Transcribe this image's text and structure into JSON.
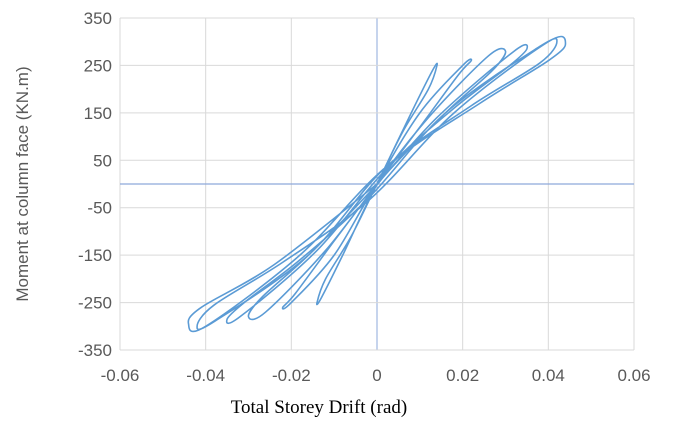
{
  "chart_data": {
    "type": "line",
    "title": "",
    "xlabel": "Total Storey Drift (rad)",
    "ylabel": "Moment at column face (KN.m)",
    "xlim": [
      -0.06,
      0.06
    ],
    "ylim": [
      -350,
      350
    ],
    "x_ticks": [
      "-0.06",
      "-0.04",
      "-0.02",
      "0",
      "0.02",
      "0.04",
      "0.06"
    ],
    "y_ticks": [
      "350",
      "250",
      "150",
      "50",
      "-50",
      "-150",
      "-250",
      "-350"
    ],
    "grid": true,
    "legend": "none",
    "colors": {
      "series": "#5b9bd5",
      "grid": "#d9d9d9",
      "zero_line": "#8ea9db"
    },
    "series": [
      {
        "x": [
          0,
          0.008,
          0.013,
          0.014,
          0.012,
          0.006,
          0,
          -0.006,
          -0.012,
          -0.014,
          -0.013,
          -0.008,
          0,
          0.01,
          0.02,
          0.022,
          0.019,
          0.01,
          0,
          -0.01,
          -0.019,
          -0.022,
          -0.02,
          -0.01,
          0,
          0.012,
          0.026,
          0.03,
          0.027,
          0.016,
          0.002,
          -0.012,
          -0.026,
          -0.03,
          -0.027,
          -0.016,
          -0.002,
          0.014,
          0.032,
          0.035,
          0.031,
          0.018,
          0.002,
          -0.014,
          -0.032,
          -0.035,
          -0.031,
          -0.018,
          -0.002,
          0.016,
          0.038,
          0.042,
          0.038,
          0.022,
          0.002,
          -0.016,
          -0.038,
          -0.042,
          -0.038,
          -0.022,
          -0.002,
          0.018,
          0.04,
          0.044,
          0.04,
          0.024,
          0.002,
          -0.018,
          -0.04,
          -0.044,
          -0.041,
          -0.024,
          0
        ],
        "y": [
          0,
          150,
          240,
          250,
          200,
          110,
          0,
          -110,
          -200,
          -250,
          -240,
          -150,
          0,
          150,
          250,
          260,
          230,
          120,
          0,
          -120,
          -230,
          -260,
          -250,
          -150,
          0,
          140,
          270,
          280,
          240,
          150,
          20,
          -140,
          -270,
          -280,
          -240,
          -150,
          -20,
          140,
          280,
          285,
          250,
          160,
          30,
          -140,
          -280,
          -285,
          -250,
          -160,
          -30,
          150,
          290,
          300,
          255,
          165,
          35,
          -150,
          -290,
          -300,
          -255,
          -165,
          -35,
          150,
          300,
          295,
          260,
          170,
          35,
          -150,
          -300,
          -295,
          -260,
          -170,
          0
        ]
      }
    ]
  }
}
